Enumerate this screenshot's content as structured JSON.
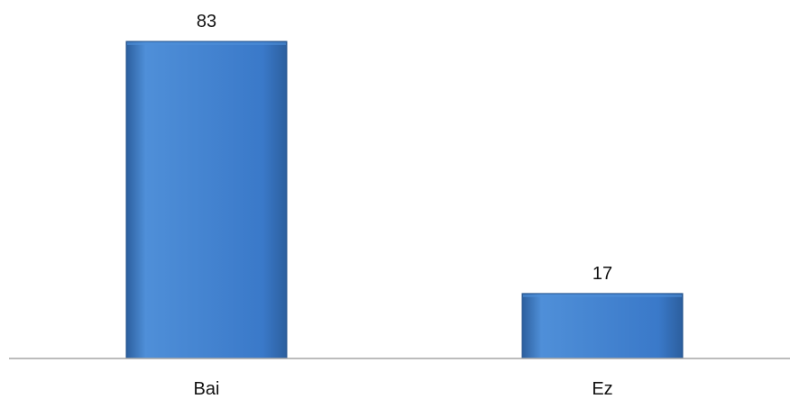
{
  "chart_data": {
    "type": "bar",
    "categories": [
      "Bai",
      "Ez"
    ],
    "values": [
      83,
      17
    ],
    "data_labels": [
      "83",
      "17"
    ],
    "ylim": [
      0,
      100
    ],
    "grid": false,
    "legend": "none",
    "colors": {
      "bar_fill_light": "#4f8fd8",
      "bar_fill_main": "#3a79c9",
      "bar_fill_dark": "#2c5f9e",
      "bar_edge": "#1f4f8a",
      "axis": "#a6a6a6"
    }
  }
}
